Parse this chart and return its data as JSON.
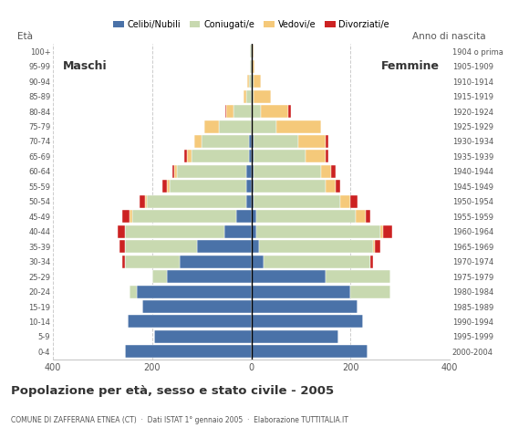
{
  "age_groups": [
    "0-4",
    "5-9",
    "10-14",
    "15-19",
    "20-24",
    "25-29",
    "30-34",
    "35-39",
    "40-44",
    "45-49",
    "50-54",
    "55-59",
    "60-64",
    "65-69",
    "70-74",
    "75-79",
    "80-84",
    "85-89",
    "90-94",
    "95-99",
    "100+"
  ],
  "birth_years": [
    "2000-2004",
    "1995-1999",
    "1990-1994",
    "1985-1989",
    "1980-1984",
    "1975-1979",
    "1970-1974",
    "1965-1969",
    "1960-1964",
    "1955-1959",
    "1950-1954",
    "1945-1949",
    "1940-1944",
    "1935-1939",
    "1930-1934",
    "1925-1929",
    "1920-1924",
    "1915-1919",
    "1910-1914",
    "1905-1909",
    "1904 o prima"
  ],
  "male": {
    "celibi": [
      255,
      195,
      250,
      220,
      230,
      170,
      145,
      110,
      55,
      30,
      10,
      10,
      10,
      5,
      5,
      0,
      0,
      0,
      0,
      0,
      0
    ],
    "coniugati": [
      0,
      0,
      0,
      0,
      15,
      30,
      110,
      145,
      200,
      210,
      200,
      155,
      140,
      115,
      95,
      65,
      35,
      10,
      5,
      2,
      2
    ],
    "vedovi": [
      0,
      0,
      0,
      0,
      0,
      0,
      0,
      0,
      0,
      5,
      5,
      5,
      5,
      10,
      15,
      30,
      15,
      5,
      3,
      0,
      0
    ],
    "divorziati": [
      0,
      0,
      0,
      0,
      0,
      0,
      5,
      10,
      15,
      15,
      10,
      10,
      5,
      5,
      0,
      0,
      3,
      0,
      0,
      0,
      0
    ]
  },
  "female": {
    "nubili": [
      235,
      175,
      225,
      215,
      200,
      150,
      25,
      15,
      10,
      10,
      5,
      5,
      5,
      5,
      5,
      0,
      0,
      0,
      0,
      0,
      0
    ],
    "coniugate": [
      0,
      0,
      0,
      0,
      80,
      130,
      215,
      230,
      250,
      200,
      175,
      145,
      135,
      105,
      90,
      50,
      20,
      5,
      5,
      2,
      2
    ],
    "vedove": [
      0,
      0,
      0,
      0,
      0,
      0,
      0,
      5,
      5,
      20,
      20,
      20,
      20,
      40,
      55,
      90,
      55,
      35,
      15,
      5,
      3
    ],
    "divorziate": [
      0,
      0,
      0,
      0,
      0,
      0,
      5,
      10,
      20,
      10,
      15,
      10,
      10,
      5,
      5,
      0,
      5,
      0,
      0,
      0,
      0
    ]
  },
  "colors": {
    "celibi": "#4a72a8",
    "coniugati": "#c8d9b0",
    "vedovi": "#f5c97a",
    "divorziati": "#cc2222"
  },
  "title": "Popolazione per età, sesso e stato civile - 2005",
  "subtitle": "COMUNE DI ZAFFERANA ETNEA (CT)  ·  Dati ISTAT 1° gennaio 2005  ·  Elaborazione TUTTITALIA.IT",
  "xlabel_left": "Maschi",
  "xlabel_right": "Femmine",
  "ylabel_left": "Età",
  "ylabel_right": "Anno di nascita",
  "xlim": 400,
  "legend_labels": [
    "Celibi/Nubili",
    "Coniugati/e",
    "Vedovi/e",
    "Divorziati/e"
  ],
  "bg_color": "#ffffff",
  "grid_color": "#cccccc"
}
